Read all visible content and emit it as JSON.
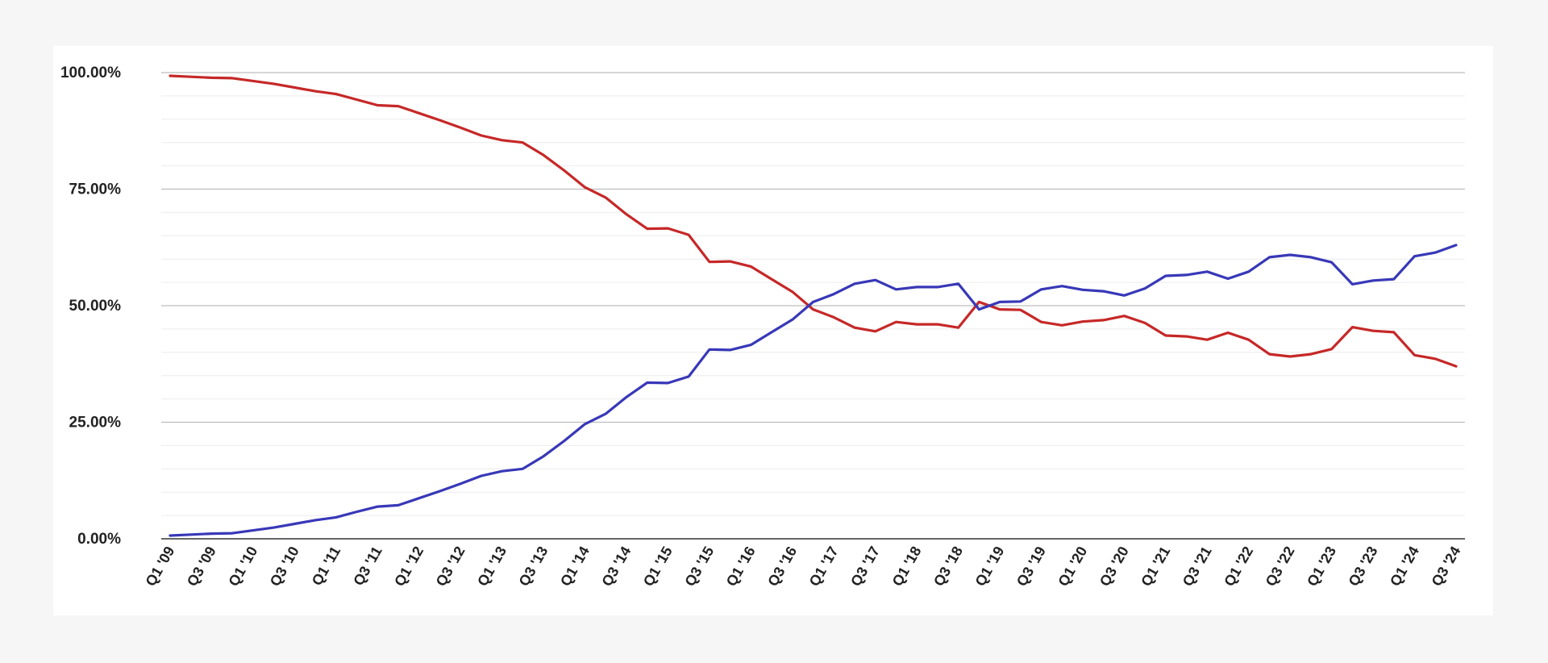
{
  "chart_data": {
    "type": "line",
    "title": "",
    "xlabel": "",
    "ylabel": "",
    "ylim": [
      0,
      100
    ],
    "y_ticks": [
      "0.00%",
      "25.00%",
      "50.00%",
      "75.00%",
      "100.00%"
    ],
    "y_tick_values": [
      0,
      25,
      50,
      75,
      100
    ],
    "grid": true,
    "legend": "none",
    "x": [
      "Q1 '09",
      "Q2 '09",
      "Q3 '09",
      "Q4 '09",
      "Q1 '10",
      "Q2 '10",
      "Q3 '10",
      "Q4 '10",
      "Q1 '11",
      "Q2 '11",
      "Q3 '11",
      "Q4 '11",
      "Q1 '12",
      "Q2 '12",
      "Q3 '12",
      "Q4 '12",
      "Q1 '13",
      "Q2 '13",
      "Q3 '13",
      "Q4 '13",
      "Q1 '14",
      "Q2 '14",
      "Q3 '14",
      "Q4 '14",
      "Q1 '15",
      "Q2 '15",
      "Q3 '15",
      "Q4 '15",
      "Q1 '16",
      "Q2 '16",
      "Q3 '16",
      "Q4 '16",
      "Q1 '17",
      "Q2 '17",
      "Q3 '17",
      "Q4 '17",
      "Q1 '18",
      "Q2 '18",
      "Q3 '18",
      "Q4 '18",
      "Q1 '19",
      "Q2 '19",
      "Q3 '19",
      "Q4 '19",
      "Q1 '20",
      "Q2 '20",
      "Q3 '20",
      "Q4 '20",
      "Q1 '21",
      "Q2 '21",
      "Q3 '21",
      "Q4 '21",
      "Q1 '22",
      "Q2 '22",
      "Q3 '22",
      "Q4 '22",
      "Q1 '23",
      "Q2 '23",
      "Q3 '23",
      "Q4 '23",
      "Q1 '24",
      "Q2 '24",
      "Q3 '24"
    ],
    "x_ticks": [
      "Q1 '09",
      "Q3 '09",
      "Q1 '10",
      "Q3 '10",
      "Q1 '11",
      "Q3 '11",
      "Q1 '12",
      "Q3 '12",
      "Q1 '13",
      "Q3 '13",
      "Q1 '14",
      "Q3 '14",
      "Q1 '15",
      "Q3 '15",
      "Q1 '16",
      "Q3 '16",
      "Q1 '17",
      "Q3 '17",
      "Q1 '18",
      "Q3 '18",
      "Q1 '19",
      "Q3 '19",
      "Q1 '20",
      "Q3 '20",
      "Q1 '21",
      "Q3 '21",
      "Q1 '22",
      "Q3 '22",
      "Q1 '23",
      "Q3 '23",
      "Q1 '24",
      "Q3 '24"
    ],
    "series": [
      {
        "color": "#c62828",
        "values": [
          99.3,
          99.1,
          98.9,
          98.8,
          98.2,
          97.6,
          96.8,
          96.0,
          95.4,
          94.2,
          93.0,
          92.8,
          91.3,
          89.8,
          88.2,
          86.5,
          85.5,
          85.0,
          82.3,
          79.0,
          75.4,
          73.2,
          69.6,
          66.5,
          66.6,
          65.2,
          59.4,
          59.5,
          58.4,
          55.7,
          53.0,
          49.2,
          47.5,
          45.3,
          44.5,
          46.5,
          46.0,
          46.0,
          45.3,
          50.8,
          49.2,
          49.1,
          46.5,
          45.8,
          46.6,
          46.9,
          47.8,
          46.3,
          43.6,
          43.4,
          42.7,
          44.2,
          42.7,
          39.6,
          39.1,
          39.6,
          40.7,
          45.4,
          44.6,
          44.3,
          39.4,
          38.6,
          37.0
        ]
      },
      {
        "color": "#3838b8",
        "values": [
          0.7,
          0.9,
          1.1,
          1.2,
          1.8,
          2.4,
          3.2,
          4.0,
          4.6,
          5.8,
          6.9,
          7.2,
          8.7,
          10.2,
          11.8,
          13.5,
          14.5,
          15.0,
          17.7,
          21.0,
          24.6,
          26.8,
          30.4,
          33.5,
          33.4,
          34.8,
          40.6,
          40.5,
          41.6,
          44.3,
          47.0,
          50.8,
          52.5,
          54.7,
          55.5,
          53.5,
          54.0,
          54.0,
          54.7,
          49.2,
          50.8,
          50.9,
          53.5,
          54.2,
          53.4,
          53.1,
          52.2,
          53.7,
          56.4,
          56.6,
          57.3,
          55.8,
          57.3,
          60.4,
          60.9,
          60.4,
          59.3,
          54.6,
          55.4,
          55.7,
          60.6,
          61.4,
          63.0
        ]
      }
    ]
  }
}
